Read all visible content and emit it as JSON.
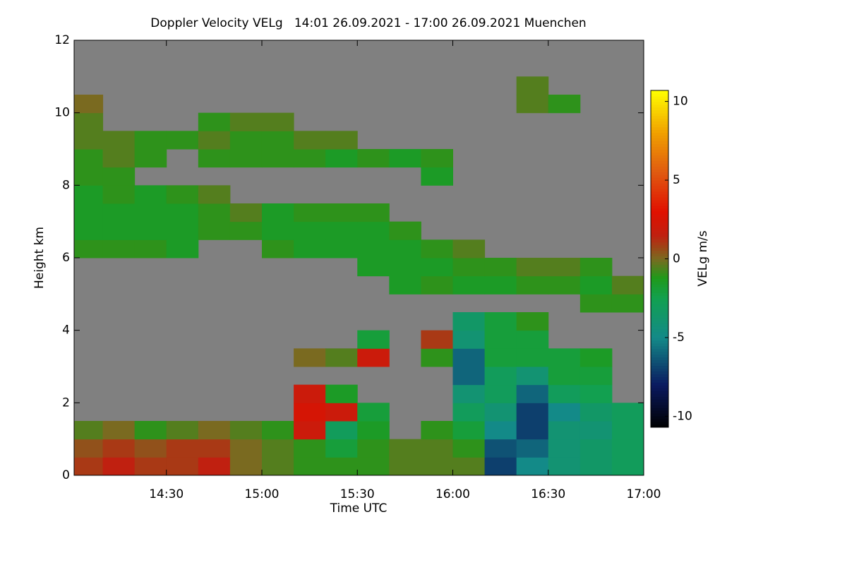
{
  "chart_data": {
    "type": "heatmap",
    "title": "Doppler Velocity VELg   14:01 26.09.2021 - 17:00 26.09.2021 Muenchen",
    "x_label": "Time UTC",
    "y_label": "Height km",
    "colorbar_label": "VELg m/s",
    "xlim": [
      14.0167,
      17.0
    ],
    "ylim": [
      0,
      12
    ],
    "xticks": [
      {
        "value": 14.5,
        "label": "14:30"
      },
      {
        "value": 15.0,
        "label": "15:00"
      },
      {
        "value": 15.5,
        "label": "15:30"
      },
      {
        "value": 16.0,
        "label": "16:00"
      },
      {
        "value": 16.5,
        "label": "16:30"
      },
      {
        "value": 17.0,
        "label": "17:00"
      }
    ],
    "yticks": [
      0,
      2,
      4,
      6,
      8,
      10,
      12
    ],
    "clim": [
      -10.7,
      10.7
    ],
    "cticks": [
      -10,
      -5,
      0,
      5,
      10
    ],
    "missing_color": "#808080",
    "colormap": [
      {
        "value": -10.7,
        "color": "#000000"
      },
      {
        "value": -8,
        "color": "#0a1a60"
      },
      {
        "value": -5,
        "color": "#138a88"
      },
      {
        "value": -2.5,
        "color": "#12a050"
      },
      {
        "value": -1.2,
        "color": "#1f9a1a"
      },
      {
        "value": 0,
        "color": "#7a6a20"
      },
      {
        "value": 1.5,
        "color": "#c02010"
      },
      {
        "value": 3,
        "color": "#e01000"
      },
      {
        "value": 5.5,
        "color": "#e05a10"
      },
      {
        "value": 8,
        "color": "#f0a000"
      },
      {
        "value": 10.7,
        "color": "#ffff00"
      }
    ],
    "xbins": [
      14.0167,
      14.1667,
      14.3333,
      14.5,
      14.6667,
      14.8333,
      15.0,
      15.1667,
      15.3333,
      15.5,
      15.6667,
      15.8333,
      16.0,
      16.1667,
      16.3333,
      16.5,
      16.6667,
      16.8333,
      17.0
    ],
    "ybins": [
      0,
      0.5,
      1,
      1.5,
      2,
      2.5,
      3,
      3.5,
      4,
      4.5,
      5,
      5.5,
      6,
      6.5,
      7,
      7.5,
      8,
      8.5,
      9,
      9.5,
      10,
      10.5,
      11,
      11.5,
      12
    ],
    "values": [
      [
        1,
        1.5,
        1,
        1,
        1.5,
        0,
        -0.5,
        -1,
        -1,
        -1,
        -0.5,
        -0.5,
        -0.5,
        -7,
        -5,
        -4,
        -3.5,
        -3
      ],
      [
        0.5,
        1,
        0.5,
        1,
        1,
        0,
        -0.5,
        -1,
        -2,
        -1,
        -0.5,
        -0.5,
        -1,
        -6.5,
        -6,
        -4,
        -3.5,
        -3
      ],
      [
        -0.5,
        0,
        -1,
        -0.5,
        0,
        -0.5,
        -1,
        2,
        -3,
        -1.5,
        null,
        -1,
        -2,
        -5,
        -7,
        -4,
        -4,
        -3
      ],
      [
        null,
        null,
        null,
        null,
        null,
        null,
        null,
        2.5,
        2,
        -2,
        null,
        null,
        -3,
        -4,
        -7,
        -5,
        -3.5,
        -3
      ],
      [
        null,
        null,
        null,
        null,
        null,
        null,
        null,
        2,
        -1.5,
        null,
        null,
        null,
        -4,
        -3,
        -6,
        -3,
        -2.5,
        null
      ],
      [
        null,
        null,
        null,
        null,
        null,
        null,
        null,
        null,
        null,
        null,
        null,
        null,
        -6,
        -3,
        -4,
        -2,
        -2,
        null
      ],
      [
        null,
        null,
        null,
        null,
        null,
        null,
        null,
        0,
        -0.5,
        2,
        null,
        -1,
        -6,
        -2,
        -2,
        -2,
        -1.5,
        null
      ],
      [
        null,
        null,
        null,
        null,
        null,
        null,
        null,
        null,
        null,
        -2,
        null,
        1,
        -4,
        -2,
        -2,
        null,
        null,
        null
      ],
      [
        null,
        null,
        null,
        null,
        null,
        null,
        null,
        null,
        null,
        null,
        null,
        null,
        -3.5,
        -2,
        -1,
        null,
        null,
        null
      ],
      [
        null,
        null,
        null,
        null,
        null,
        null,
        null,
        null,
        null,
        null,
        null,
        null,
        null,
        null,
        null,
        null,
        -1,
        -1
      ],
      [
        null,
        null,
        null,
        null,
        null,
        null,
        null,
        null,
        null,
        null,
        -1.5,
        -1,
        -1.5,
        -1.5,
        -1,
        -1,
        -1.5,
        -0.5
      ],
      [
        null,
        null,
        null,
        null,
        null,
        null,
        null,
        null,
        null,
        -1.5,
        -1.5,
        -1.5,
        -1,
        -1,
        -0.5,
        -0.5,
        -1,
        null
      ],
      [
        -1,
        -1,
        -1,
        -1.5,
        null,
        null,
        -1,
        -1.5,
        -1.5,
        -1.5,
        -1.5,
        -1,
        -0.5,
        null,
        null,
        null,
        null,
        null
      ],
      [
        -1.5,
        -1.5,
        -1.5,
        -1.5,
        -1,
        -1,
        -1.5,
        -1.5,
        -1.5,
        -1.5,
        -1,
        null,
        null,
        null,
        null,
        null,
        null,
        null
      ],
      [
        -1.5,
        -1.5,
        -1.5,
        -1.5,
        -1,
        -0.5,
        -1.5,
        -1,
        -1,
        -1,
        null,
        null,
        null,
        null,
        null,
        null,
        null,
        null
      ],
      [
        -1.5,
        -1,
        -1.5,
        -1,
        -0.5,
        null,
        null,
        null,
        null,
        null,
        null,
        null,
        null,
        null,
        null,
        null,
        null,
        null
      ],
      [
        -1,
        -1,
        null,
        null,
        null,
        null,
        null,
        null,
        null,
        null,
        null,
        -1.5,
        null,
        null,
        null,
        null,
        null,
        null
      ],
      [
        -1,
        -0.5,
        -1,
        null,
        -1,
        -1,
        -1,
        -1,
        -1.5,
        -1,
        -1.5,
        -1,
        null,
        null,
        null,
        null,
        null,
        null
      ],
      [
        -0.5,
        -0.5,
        -1,
        -1,
        -0.5,
        -1,
        -1,
        -0.5,
        -0.5,
        null,
        null,
        null,
        null,
        null,
        null,
        null,
        null,
        null
      ],
      [
        -0.5,
        null,
        null,
        null,
        -1,
        -0.5,
        -0.5,
        null,
        null,
        null,
        null,
        null,
        null,
        null,
        null,
        null,
        null,
        null
      ],
      [
        0,
        null,
        null,
        null,
        null,
        null,
        null,
        null,
        null,
        null,
        null,
        null,
        null,
        null,
        -0.5,
        -1,
        null,
        null
      ],
      [
        null,
        null,
        null,
        null,
        null,
        null,
        null,
        null,
        null,
        null,
        null,
        null,
        null,
        null,
        -0.5,
        null,
        null,
        null
      ],
      [
        null,
        null,
        null,
        null,
        null,
        null,
        null,
        null,
        null,
        null,
        null,
        null,
        null,
        null,
        null,
        null,
        null,
        null
      ],
      [
        null,
        null,
        null,
        null,
        null,
        null,
        null,
        null,
        null,
        null,
        null,
        null,
        null,
        null,
        null,
        null,
        null,
        null
      ]
    ]
  }
}
